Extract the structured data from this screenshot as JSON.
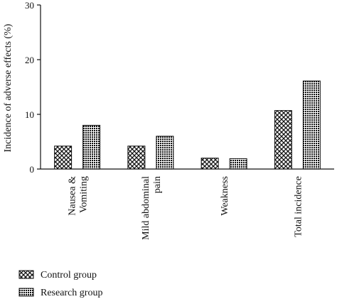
{
  "chart_data": {
    "type": "bar",
    "ylabel": "Incidence of adverse effects (%)",
    "xlabel": "",
    "ylim": [
      0,
      30
    ],
    "yticks": [
      0,
      10,
      20,
      30
    ],
    "categories": [
      [
        "Nausea &",
        "Vomiting"
      ],
      [
        "Mild abdominal",
        "pain"
      ],
      [
        "Weakness"
      ],
      [
        "Total incidence"
      ]
    ],
    "series": [
      {
        "name": "Control group",
        "pattern": "crosshatch",
        "values": [
          4.2,
          4.2,
          2.0,
          10.7
        ]
      },
      {
        "name": "Research group",
        "pattern": "dots",
        "values": [
          8.0,
          6.0,
          1.9,
          16.1
        ]
      }
    ],
    "legend_position": "bottom-left",
    "grid": false
  }
}
